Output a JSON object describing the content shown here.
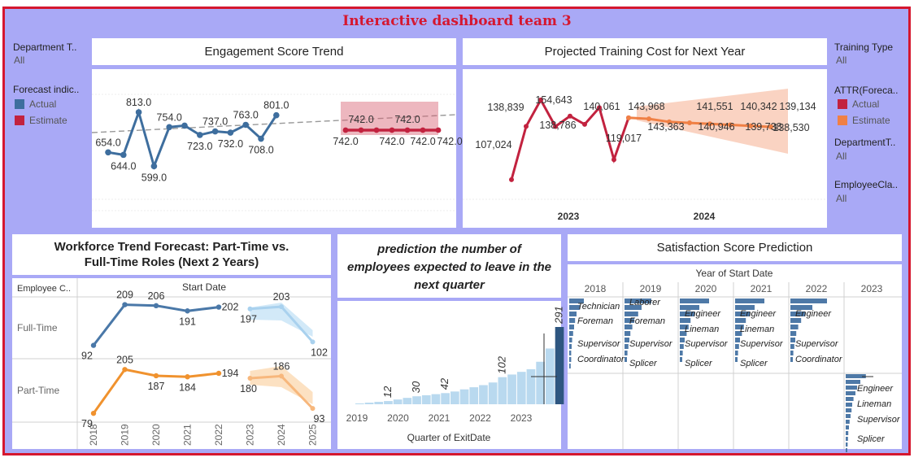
{
  "dashboard": {
    "title": "Interactive dashboard team 3"
  },
  "colors": {
    "frame": "#d5172f",
    "background": "#a9a9f6",
    "actual": "#3e6e9e",
    "estimate": "#c2223f",
    "estimate_orange": "#f08045",
    "fulltime": "#4a78a8",
    "parttime": "#f0922e",
    "bar_light": "#b9d9ef",
    "bar_dark": "#2e5680"
  },
  "left_filters": {
    "department_label": "Department T..",
    "department_value": "All",
    "forecast_label": "Forecast indic..",
    "legend_actual": "Actual",
    "legend_estimate": "Estimate"
  },
  "right_filters": {
    "training_label": "Training Type",
    "training_value": "All",
    "attr_label": "ATTR(Foreca..",
    "legend_actual": "Actual",
    "legend_estimate": "Estimate",
    "department_label": "DepartmentT..",
    "department_value": "All",
    "employee_class_label": "EmployeeCla..",
    "employee_class_value": "All"
  },
  "panels": {
    "engagement_title": "Engagement Score Trend",
    "training_title": "Projected Training Cost for Next Year",
    "workforce_title_line1": "Workforce Trend Forecast: Part-Time vs.",
    "workforce_title_line2": "Full-Time Roles (Next 2 Years)",
    "attrition_title_line1": "prediction the number of",
    "attrition_title_line2": "employees expected to leave in the",
    "attrition_title_line3": "next quarter",
    "satisfaction_title": "Satisfaction Score Prediction"
  },
  "chart_data": [
    {
      "id": "engagement",
      "type": "line",
      "title": "Engagement Score Trend",
      "actual_values": [
        654.0,
        644.0,
        813.0,
        599.0,
        754.0,
        760.0,
        723.0,
        737.0,
        732.0,
        763.0,
        708.0,
        801.0
      ],
      "estimate_values": [
        742.0,
        742.0,
        742.0,
        742.0,
        742.0,
        742.0,
        742.0
      ],
      "labels": [
        {
          "i": 0,
          "text": "654.0",
          "pos": "above"
        },
        {
          "i": 1,
          "text": "644.0",
          "pos": "below"
        },
        {
          "i": 2,
          "text": "813.0",
          "pos": "above"
        },
        {
          "i": 3,
          "text": "599.0",
          "pos": "below"
        },
        {
          "i": 4,
          "text": "754.0",
          "pos": "above"
        },
        {
          "i": 6,
          "text": "723.0",
          "pos": "below"
        },
        {
          "i": 7,
          "text": "737.0",
          "pos": "above"
        },
        {
          "i": 8,
          "text": "732.0",
          "pos": "below"
        },
        {
          "i": 9,
          "text": "763.0",
          "pos": "above"
        },
        {
          "i": 10,
          "text": "708.0",
          "pos": "below"
        },
        {
          "i": 11,
          "text": "801.0",
          "pos": "above"
        }
      ],
      "estimate_labels": [
        {
          "i": 0,
          "text": "742.0",
          "pos": "below"
        },
        {
          "i": 1,
          "text": "742.0",
          "pos": "above"
        },
        {
          "i": 3,
          "text": "742.0",
          "pos": "below"
        },
        {
          "i": 4,
          "text": "742.0",
          "pos": "above"
        },
        {
          "i": 5,
          "text": "742.0",
          "pos": "below"
        },
        {
          "i": 6,
          "text": "742.0",
          "pos": "below"
        }
      ]
    },
    {
      "id": "training",
      "type": "line",
      "title": "Projected Training Cost for Next Year",
      "x_ticks": [
        "2023",
        "2024"
      ],
      "actual_values": [
        107024,
        138839,
        154643,
        138786,
        145000,
        140061,
        150000,
        119017,
        143968
      ],
      "estimate_values": [
        143968,
        143363,
        141551,
        140946,
        140342,
        139738,
        139134,
        138530
      ],
      "labels": [
        {
          "text": "107,024"
        },
        {
          "text": "138,839"
        },
        {
          "text": "154,643"
        },
        {
          "text": "138,786"
        },
        {
          "text": "140,061"
        },
        {
          "text": "119,017"
        },
        {
          "text": "143,968"
        },
        {
          "text": "143,363"
        },
        {
          "text": "141,551"
        },
        {
          "text": "140,946"
        },
        {
          "text": "140,342"
        },
        {
          "text": "139,738"
        },
        {
          "text": "139,134"
        },
        {
          "text": "138,530"
        }
      ]
    },
    {
      "id": "workforce",
      "type": "line",
      "title": "Workforce Trend Forecast: Part-Time vs. Full-Time Roles (Next 2 Years)",
      "column_header": "Employee C..",
      "x_header": "Start Date",
      "rows": [
        "Full-Time",
        "Part-Time"
      ],
      "x": [
        "2018",
        "2019",
        "2020",
        "2021",
        "2022",
        "2023",
        "2024",
        "2025"
      ],
      "series": [
        {
          "name": "Full-Time",
          "actual": [
            92,
            209,
            206,
            191,
            202
          ],
          "forecast": [
            197,
            203,
            102
          ]
        },
        {
          "name": "Part-Time",
          "actual": [
            79,
            205,
            187,
            184,
            194
          ],
          "forecast": [
            180,
            186,
            93
          ]
        }
      ]
    },
    {
      "id": "attrition",
      "type": "bar",
      "title": "prediction the number of employees expected to leave in the next quarter",
      "xlabel": "Quarter of ExitDate",
      "x_ticks": [
        "2019",
        "2020",
        "2021",
        "2022",
        "2023"
      ],
      "values": [
        3,
        6,
        9,
        12,
        18,
        24,
        30,
        34,
        38,
        42,
        48,
        56,
        64,
        72,
        82,
        102,
        112,
        122,
        132,
        160,
        210,
        291
      ],
      "value_labels": [
        {
          "i": 3,
          "text": "12"
        },
        {
          "i": 6,
          "text": "30"
        },
        {
          "i": 9,
          "text": "42"
        },
        {
          "i": 15,
          "text": "102"
        },
        {
          "i": 21,
          "text": "291"
        }
      ]
    },
    {
      "id": "satisfaction",
      "type": "bar",
      "title": "Satisfaction Score Prediction",
      "header": "Year of Start Date",
      "years": [
        "2018",
        "2019",
        "2020",
        "2021",
        "2022",
        "2023"
      ],
      "groups": [
        {
          "year": "2018",
          "labels": [
            "Technician",
            "Foreman",
            "Supervisor",
            "Coordinator"
          ],
          "bars": [
            0.3,
            0.22,
            0.15,
            0.12,
            0.1,
            0.08,
            0.06,
            0.05,
            0.04,
            0.04,
            0.03
          ]
        },
        {
          "year": "2019",
          "labels": [
            "Laborer",
            "Foreman",
            "Supervisor",
            "Splicer"
          ],
          "bars": [
            0.55,
            0.35,
            0.28,
            0.2,
            0.16,
            0.12,
            0.1,
            0.08,
            0.06,
            0.05
          ]
        },
        {
          "year": "2020",
          "labels": [
            "Engineer",
            "Lineman",
            "Supervisor",
            "Splicer"
          ],
          "bars": [
            0.6,
            0.4,
            0.3,
            0.22,
            0.18,
            0.14,
            0.1,
            0.08,
            0.06,
            0.05
          ]
        },
        {
          "year": "2021",
          "labels": [
            "Engineer",
            "Lineman",
            "Supervisor",
            "Splicer"
          ],
          "bars": [
            0.6,
            0.4,
            0.3,
            0.22,
            0.18,
            0.14,
            0.1,
            0.08,
            0.06,
            0.05
          ]
        },
        {
          "year": "2022",
          "labels": [
            "Engineer",
            "Supervisor",
            "Coordinator"
          ],
          "bars": [
            0.75,
            0.45,
            0.3,
            0.22,
            0.16,
            0.12,
            0.1,
            0.08,
            0.06,
            0.05
          ]
        },
        {
          "year": "2023",
          "labels": [
            "Engineer",
            "Lineman",
            "Supervisor",
            "Splicer"
          ],
          "bars": [
            0.62,
            0.45,
            0.35,
            0.3,
            0.24,
            0.2,
            0.18,
            0.15,
            0.12,
            0.1,
            0.08,
            0.07,
            0.06,
            0.05
          ]
        }
      ]
    }
  ]
}
